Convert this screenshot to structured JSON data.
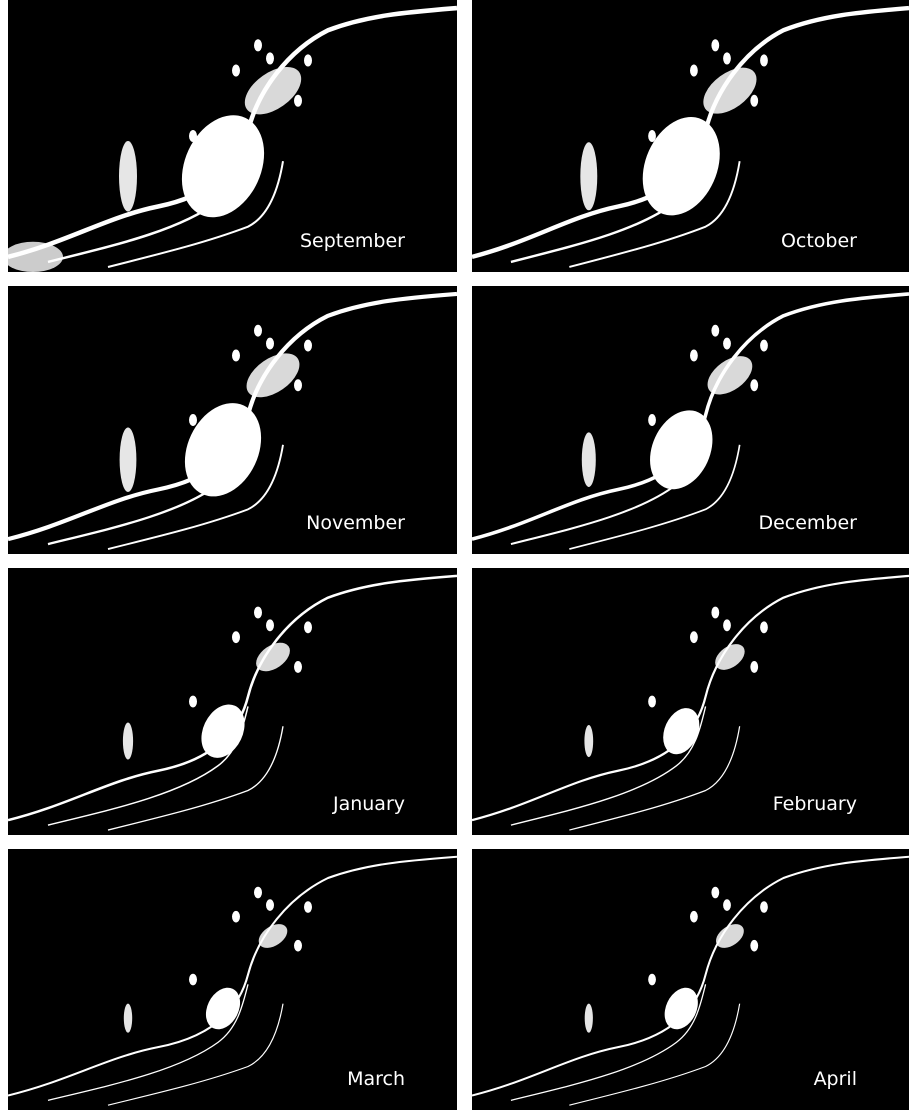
{
  "panels": [
    {
      "label": "September"
    },
    {
      "label": "October"
    },
    {
      "label": "November"
    },
    {
      "label": "December"
    },
    {
      "label": "January"
    },
    {
      "label": "February"
    },
    {
      "label": "March"
    },
    {
      "label": "April"
    }
  ]
}
